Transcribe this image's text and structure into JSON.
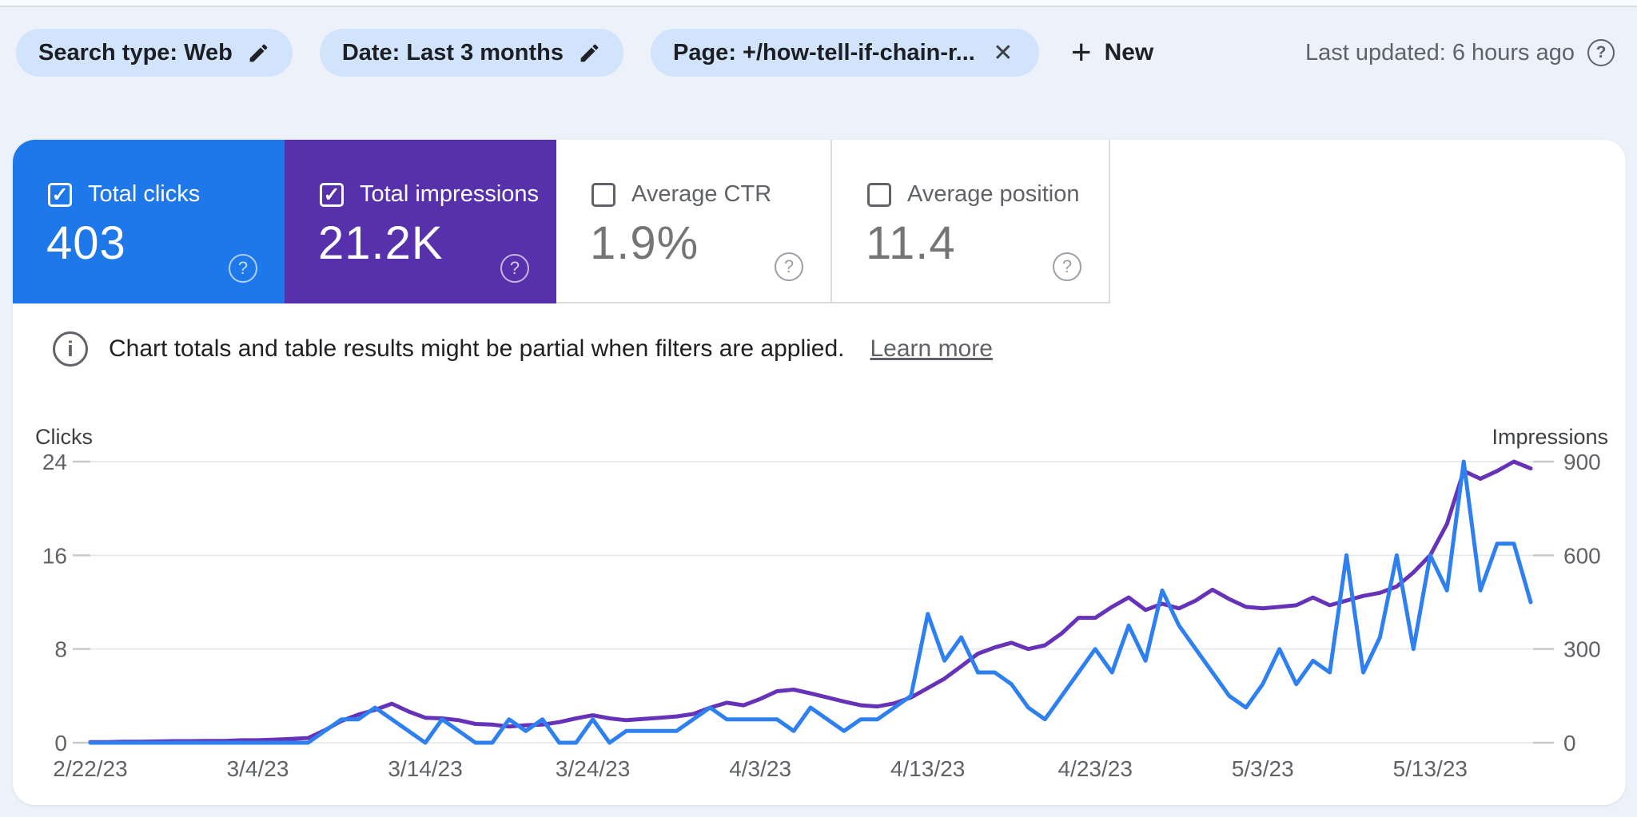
{
  "filter_bar": {
    "chips": [
      {
        "label": "Search type: Web",
        "icon": "edit-pencil-icon"
      },
      {
        "label": "Date: Last 3 months",
        "icon": "edit-pencil-icon"
      },
      {
        "label": "Page: +/how-tell-if-chain-r...",
        "icon": "remove-filter-icon"
      }
    ],
    "new_button_label": "New",
    "last_updated": "Last updated: 6 hours ago"
  },
  "cards": [
    {
      "label": "Total clicks",
      "value": "403",
      "checked": true,
      "color": "#1e78ea"
    },
    {
      "label": "Total impressions",
      "value": "21.2K",
      "checked": true,
      "color": "#5731ac"
    },
    {
      "label": "Average CTR",
      "value": "1.9%",
      "checked": false,
      "color": ""
    },
    {
      "label": "Average position",
      "value": "11.4",
      "checked": false,
      "color": ""
    }
  ],
  "info_banner": {
    "text": "Chart totals and table results might be partial when filters are applied.",
    "link": "Learn more"
  },
  "colors": {
    "chip_background": "#d2e3fc",
    "clicks_line": "#2e80f0",
    "impressions_line": "#6633b8",
    "gridline": "#e8eaed",
    "axis_text": "#5f6368"
  },
  "chart_data": {
    "type": "line",
    "title": "",
    "x_tick_labels": [
      "2/22/23",
      "3/4/23",
      "3/14/23",
      "3/24/23",
      "4/3/23",
      "4/13/23",
      "4/23/23",
      "5/3/23",
      "5/13/23"
    ],
    "x_tick_indices": [
      0,
      10,
      20,
      30,
      40,
      50,
      60,
      70,
      80
    ],
    "num_points": 87,
    "grid": true,
    "left_axis": {
      "title": "Clicks",
      "ticks": [
        24,
        16,
        8,
        0
      ],
      "max": 24
    },
    "right_axis": {
      "title": "Impressions",
      "ticks": [
        900,
        600,
        300,
        0
      ],
      "max": 900
    },
    "series": [
      {
        "name": "Impressions",
        "axis": "right",
        "color": "#6633b8",
        "values": [
          2,
          2,
          3,
          3,
          4,
          5,
          5,
          6,
          6,
          8,
          8,
          10,
          12,
          15,
          40,
          70,
          90,
          105,
          125,
          100,
          80,
          78,
          72,
          60,
          58,
          52,
          56,
          58,
          66,
          78,
          88,
          78,
          72,
          76,
          80,
          84,
          92,
          112,
          128,
          120,
          140,
          165,
          170,
          158,
          145,
          132,
          120,
          116,
          126,
          145,
          175,
          205,
          245,
          285,
          305,
          320,
          300,
          312,
          350,
          400,
          400,
          435,
          465,
          425,
          445,
          430,
          455,
          490,
          460,
          435,
          430,
          435,
          440,
          465,
          440,
          455,
          470,
          480,
          500,
          545,
          600,
          700,
          870,
          845,
          870,
          900,
          878
        ]
      },
      {
        "name": "Clicks",
        "axis": "left",
        "color": "#2e80f0",
        "values": [
          0,
          0,
          0,
          0,
          0,
          0,
          0,
          0,
          0,
          0,
          0,
          0,
          0,
          0,
          1,
          2,
          2,
          3,
          2,
          1,
          0,
          2,
          1,
          0,
          0,
          2,
          1,
          2,
          0,
          0,
          2,
          0,
          1,
          1,
          1,
          1,
          2,
          3,
          2,
          2,
          2,
          2,
          1,
          3,
          2,
          1,
          2,
          2,
          3,
          4,
          11,
          7,
          9,
          6,
          6,
          5,
          3,
          2,
          4,
          6,
          8,
          6,
          10,
          7,
          13,
          10,
          8,
          6,
          4,
          3,
          5,
          8,
          5,
          7,
          6,
          16,
          6,
          9,
          16,
          8,
          16,
          13,
          24,
          13,
          17,
          17,
          12
        ]
      }
    ]
  }
}
